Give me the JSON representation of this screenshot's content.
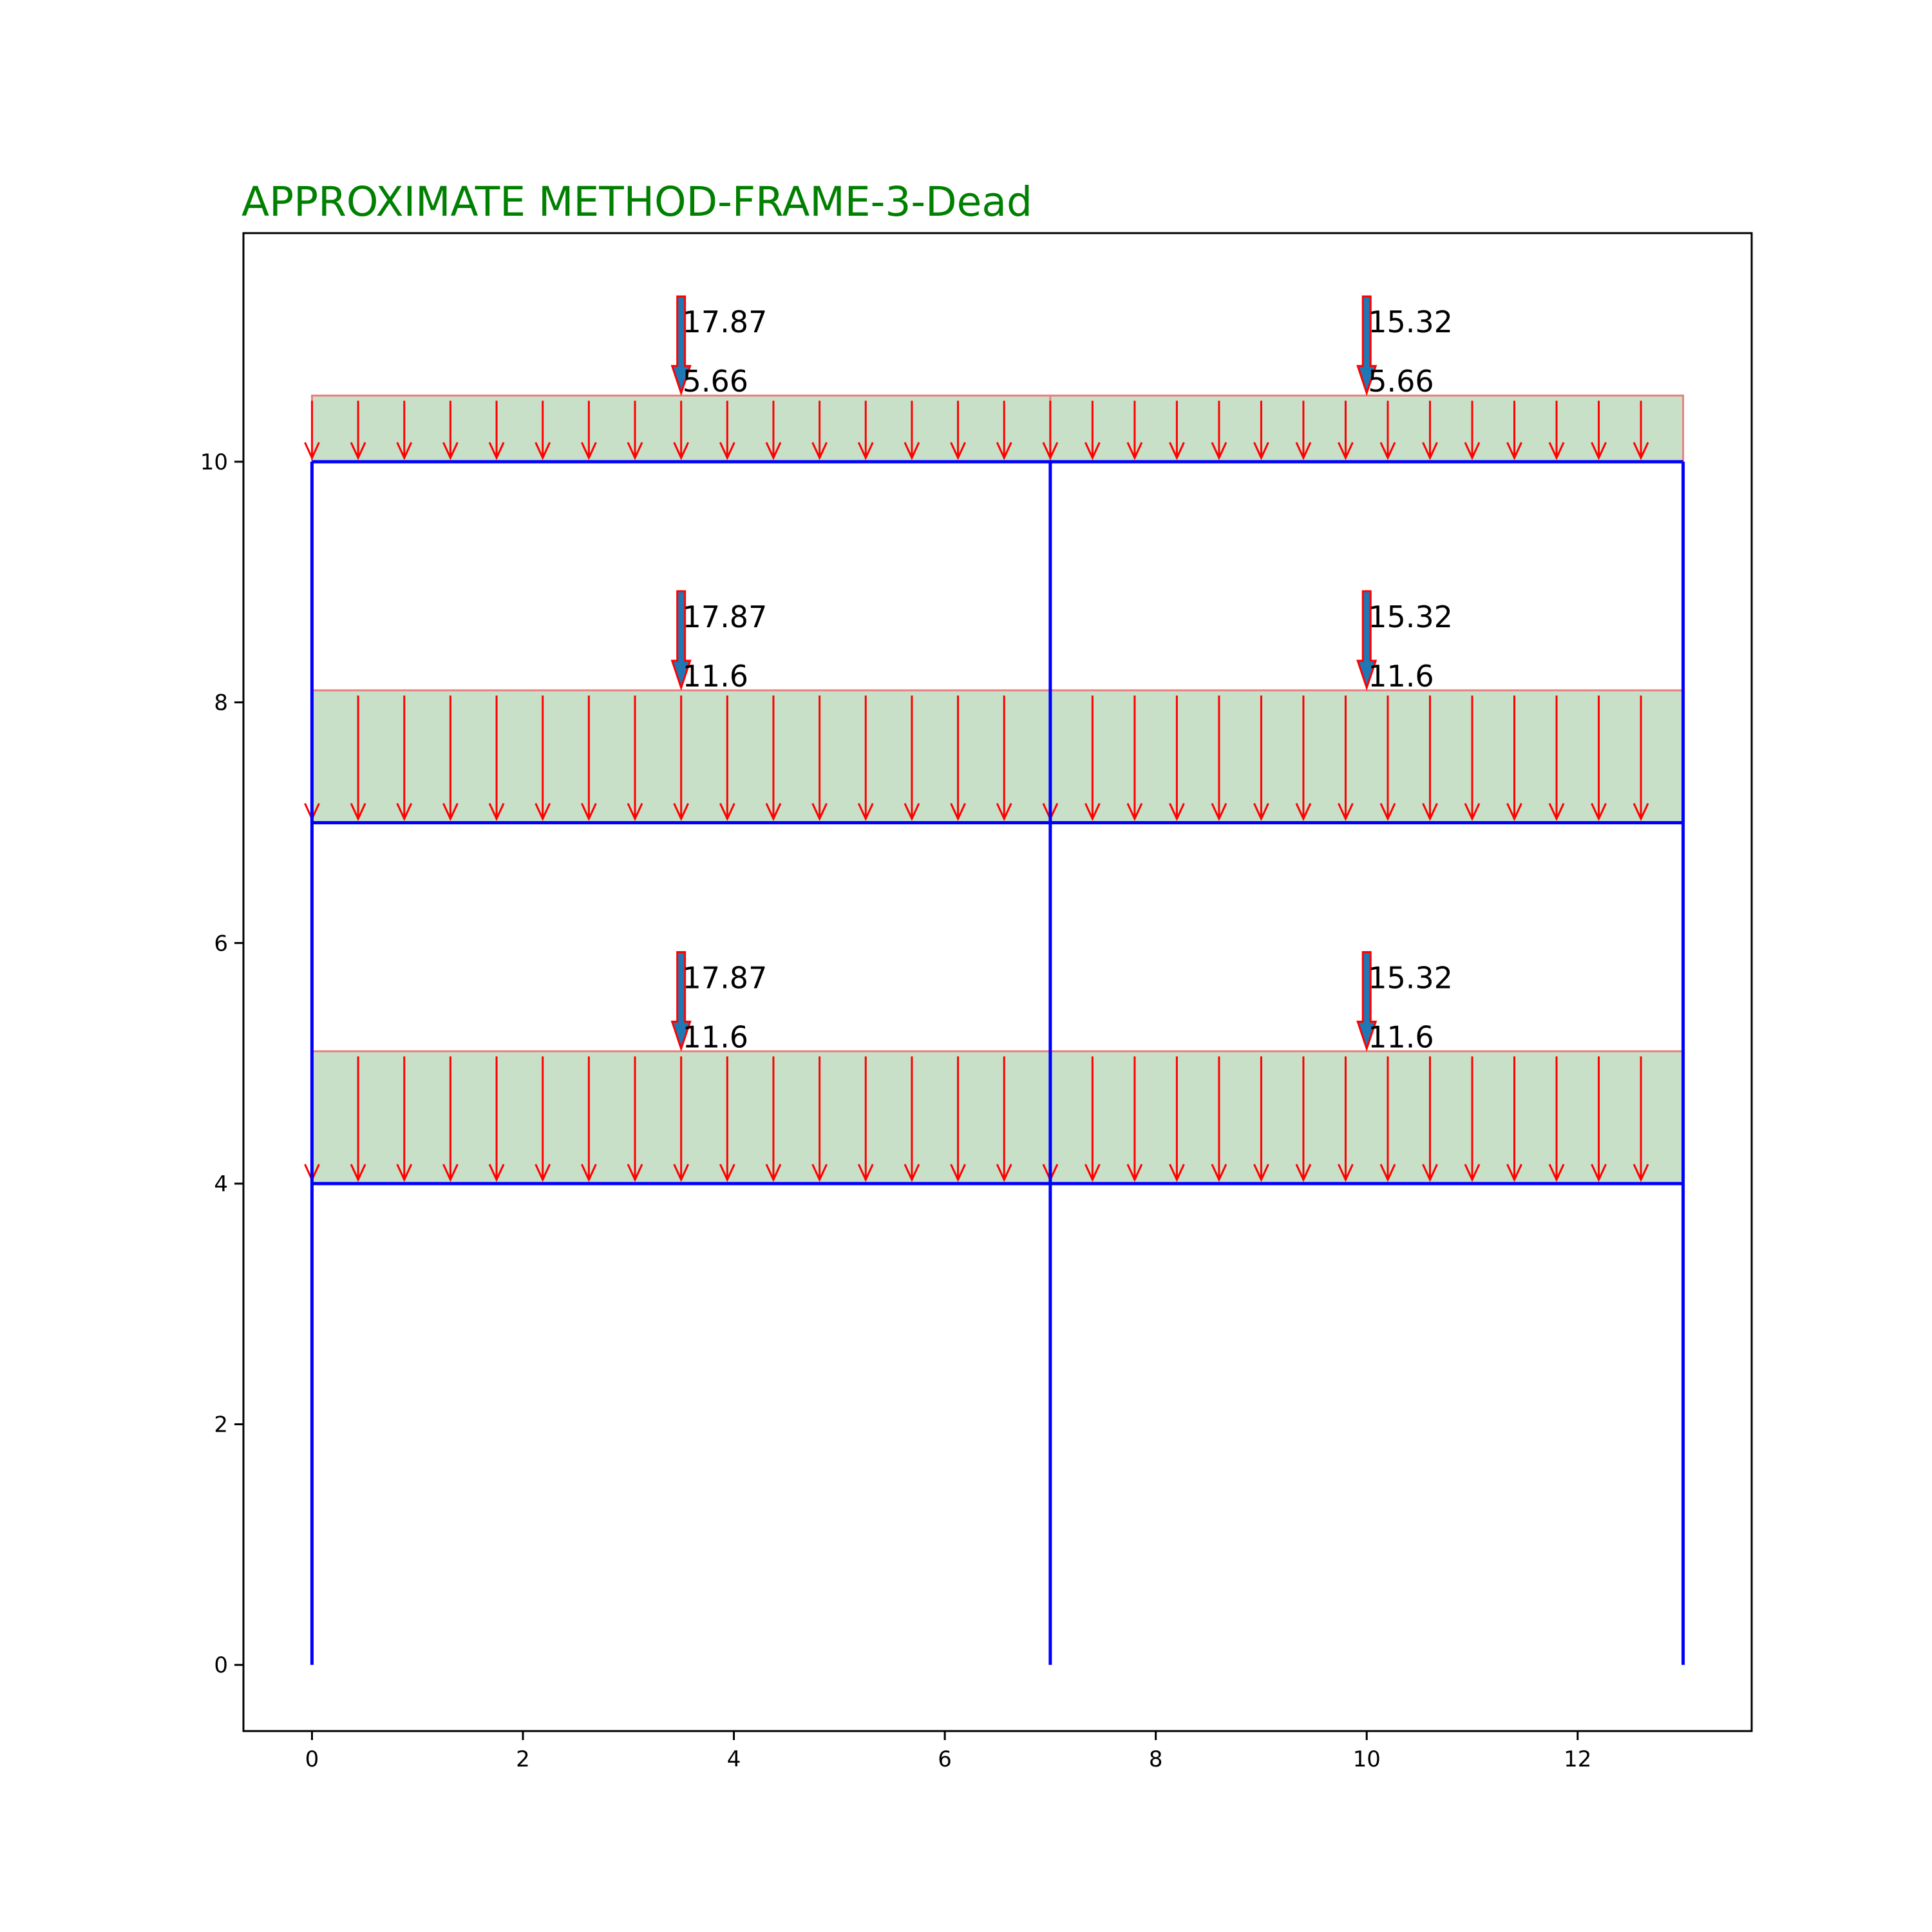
{
  "chart_data": {
    "type": "diagram",
    "title": "APPROXIMATE METHOD-FRAME-3-Dead",
    "xlabel": "",
    "ylabel": "",
    "xlim": [
      -0.65,
      13.65
    ],
    "ylim": [
      -0.55,
      11.9
    ],
    "x_ticks": [
      0,
      2,
      4,
      6,
      8,
      10,
      12
    ],
    "y_ticks": [
      0,
      2,
      4,
      6,
      8,
      10
    ],
    "grid": false,
    "columns_x": [
      0,
      7,
      13
    ],
    "column_base_y": 0,
    "bays": [
      {
        "name": "bay-1",
        "x_start": 0,
        "x_end": 7,
        "load_label_x": 3.5,
        "arrow_count": 16
      },
      {
        "name": "bay-2",
        "x_start": 7,
        "x_end": 13,
        "load_label_x": 10,
        "arrow_count": 15
      }
    ],
    "floors": [
      {
        "name": "floor-1",
        "beam_y": 4,
        "load_top_y": 5.1,
        "udl": "11.6",
        "point_loads": [
          "17.87",
          "15.32"
        ]
      },
      {
        "name": "floor-2",
        "beam_y": 7,
        "load_top_y": 8.1,
        "udl": "11.6",
        "point_loads": [
          "17.87",
          "15.32"
        ]
      },
      {
        "name": "roof",
        "beam_y": 10,
        "load_top_y": 10.55,
        "udl": "5.66",
        "point_loads": [
          "17.87",
          "15.32"
        ]
      }
    ],
    "colors": {
      "frame": "#0000ff",
      "load_arrow": "#ff0000",
      "load_fill": "#c8dfc8",
      "load_border": "#e88080",
      "point_arrow_fill": "#1f77b4",
      "title": "#008000",
      "axes": "#000000"
    }
  }
}
